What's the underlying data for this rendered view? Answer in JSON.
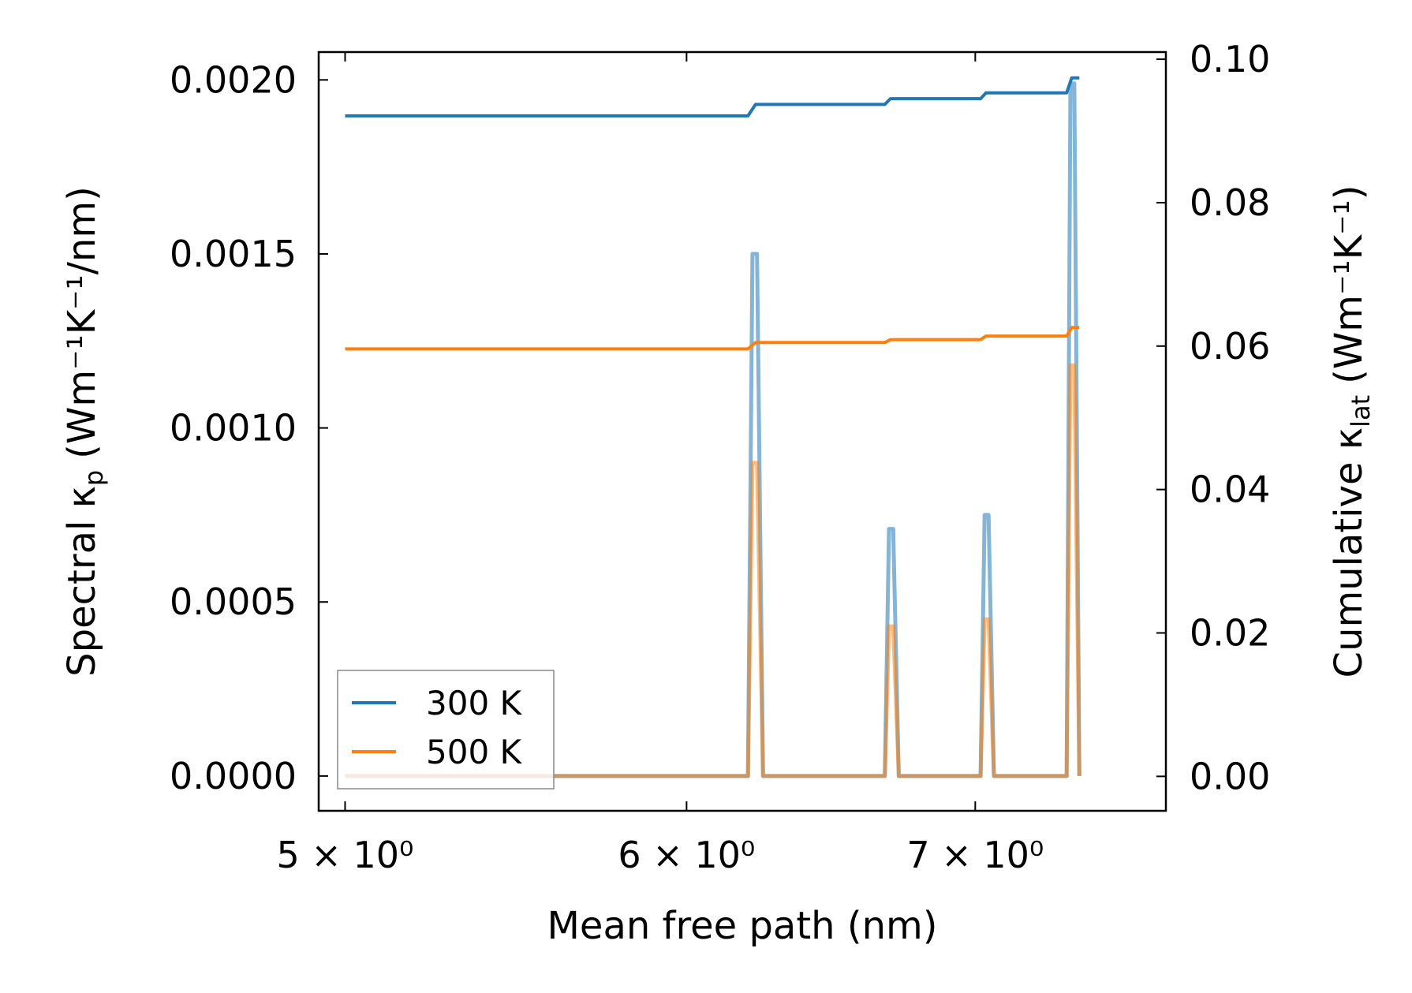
{
  "chart_data": {
    "type": "line",
    "xscale": "log",
    "xlabel": "Mean free path (nm)",
    "ylabel_left": {
      "prefix": "Spectral κ",
      "sub": "p",
      "unit": "(Wm⁻¹K⁻¹/nm)"
    },
    "ylabel_right": {
      "prefix": "Cumulative κ",
      "sub": "lat",
      "unit": "(Wm⁻¹K⁻¹)"
    },
    "xlim": [
      4.93,
      7.75
    ],
    "ylim_left": [
      -0.0001,
      0.00208
    ],
    "ylim_right": [
      -0.0048,
      0.101
    ],
    "x_ticks": [
      {
        "value": 5,
        "label": "5 × 10⁰"
      },
      {
        "value": 6,
        "label": "6 × 10⁰"
      },
      {
        "value": 7,
        "label": "7 × 10⁰"
      }
    ],
    "y_left_ticks": [
      {
        "value": 0.0,
        "label": "0.0000"
      },
      {
        "value": 0.0005,
        "label": "0.0005"
      },
      {
        "value": 0.001,
        "label": "0.0010"
      },
      {
        "value": 0.0015,
        "label": "0.0015"
      },
      {
        "value": 0.002,
        "label": "0.0020"
      }
    ],
    "y_right_ticks": [
      {
        "value": 0.0,
        "label": "0.00"
      },
      {
        "value": 0.02,
        "label": "0.02"
      },
      {
        "value": 0.04,
        "label": "0.04"
      },
      {
        "value": 0.06,
        "label": "0.06"
      },
      {
        "value": 0.08,
        "label": "0.08"
      },
      {
        "value": 0.1,
        "label": "0.10"
      }
    ],
    "legend": {
      "placement": "lower-left",
      "entries": [
        "300 K",
        "500 K"
      ]
    },
    "series": [
      {
        "name": "300 K",
        "color": "#1f77b4",
        "spectral": {
          "x": [
            5.0,
            6.2,
            6.215,
            6.23,
            6.25,
            6.265,
            6.67,
            6.685,
            6.7,
            6.72,
            7.02,
            7.035,
            7.05,
            7.07,
            7.35,
            7.365,
            7.38,
            7.4
          ],
          "y": [
            0.0,
            0.0,
            0.0015,
            0.0015,
            0.0,
            0.0,
            0.0,
            0.00071,
            0.00071,
            0.0,
            0.0,
            0.00075,
            0.00075,
            0.0,
            0.0,
            0.00199,
            0.00199,
            0.0
          ]
        },
        "cumulative": {
          "x": [
            5.0,
            6.2,
            6.225,
            6.67,
            6.69,
            7.02,
            7.04,
            7.35,
            7.37,
            7.4
          ],
          "y": [
            0.0921,
            0.0921,
            0.0937,
            0.0937,
            0.0945,
            0.0945,
            0.0953,
            0.0953,
            0.0974,
            0.0974
          ]
        }
      },
      {
        "name": "500 K",
        "color": "#ff7f0e",
        "spectral": {
          "x": [
            5.0,
            6.2,
            6.215,
            6.23,
            6.25,
            6.265,
            6.67,
            6.685,
            6.7,
            6.72,
            7.02,
            7.035,
            7.05,
            7.07,
            7.35,
            7.365,
            7.38,
            7.4
          ],
          "y": [
            0.0,
            0.0,
            0.0009,
            0.0009,
            0.0,
            0.0,
            0.0,
            0.00043,
            0.00043,
            0.0,
            0.0,
            0.00045,
            0.00045,
            0.0,
            0.0,
            0.00118,
            0.00118,
            0.0
          ]
        },
        "cumulative": {
          "x": [
            5.0,
            6.2,
            6.225,
            6.67,
            6.69,
            7.02,
            7.04,
            7.35,
            7.37,
            7.4
          ],
          "y": [
            0.0596,
            0.0596,
            0.0605,
            0.0605,
            0.0609,
            0.0609,
            0.0614,
            0.0614,
            0.0626,
            0.0626
          ]
        }
      }
    ]
  }
}
